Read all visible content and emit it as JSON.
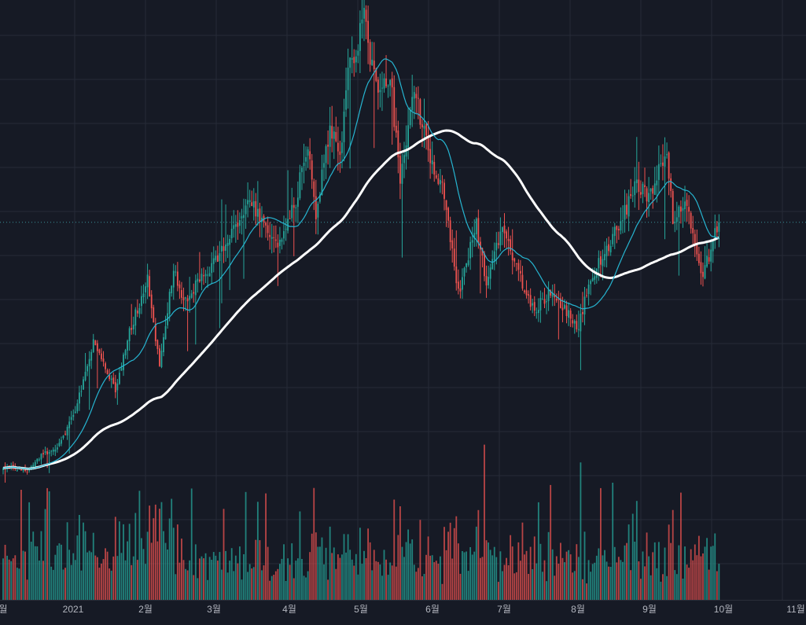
{
  "chart_data": {
    "type": "candlestick",
    "title": "",
    "xlabel": "",
    "ylabel": "",
    "x_tick_labels": [
      "월",
      "2021",
      "2월",
      "3월",
      "4월",
      "5월",
      "6월",
      "7월",
      "8월",
      "9월",
      "10월",
      "11월"
    ],
    "grid": true,
    "colors": {
      "background": "#161a25",
      "grid": "#262b38",
      "up": "#26a69a",
      "down": "#ef5350",
      "ma_short": "#26b5d1",
      "ma_long": "#ffffff",
      "last_price_line": "#3a8f99",
      "axis_text": "#b2b5be"
    },
    "close_key_points": [
      [
        0,
        21
      ],
      [
        13,
        20
      ],
      [
        20,
        24
      ],
      [
        27,
        25
      ],
      [
        36,
        34
      ],
      [
        45,
        50
      ],
      [
        56,
        39
      ],
      [
        63,
        53
      ],
      [
        72,
        65
      ],
      [
        78,
        45
      ],
      [
        85,
        68
      ],
      [
        90,
        59
      ],
      [
        93,
        62
      ],
      [
        104,
        68
      ],
      [
        112,
        74
      ],
      [
        123,
        85
      ],
      [
        130,
        78
      ],
      [
        138,
        73
      ],
      [
        146,
        84
      ],
      [
        152,
        98
      ],
      [
        156,
        80
      ],
      [
        163,
        102
      ],
      [
        168,
        94
      ],
      [
        172,
        114
      ],
      [
        180,
        127
      ],
      [
        186,
        110
      ],
      [
        193,
        114
      ],
      [
        198,
        88
      ],
      [
        205,
        110
      ],
      [
        212,
        96
      ],
      [
        220,
        85
      ],
      [
        227,
        62
      ],
      [
        236,
        78
      ],
      [
        241,
        64
      ],
      [
        249,
        78
      ],
      [
        255,
        70
      ],
      [
        260,
        63
      ],
      [
        265,
        58
      ],
      [
        273,
        62
      ],
      [
        280,
        58
      ],
      [
        287,
        54
      ],
      [
        293,
        66
      ],
      [
        300,
        71
      ],
      [
        308,
        79
      ],
      [
        316,
        88
      ],
      [
        322,
        84
      ],
      [
        328,
        92
      ],
      [
        331,
        96
      ],
      [
        334,
        79
      ],
      [
        340,
        85
      ],
      [
        345,
        74
      ],
      [
        349,
        66
      ],
      [
        355,
        76
      ],
      [
        357,
        80
      ]
    ],
    "y_range": [
      0,
      125
    ],
    "ma_short_period": 20,
    "ma_long_period": 80
  }
}
